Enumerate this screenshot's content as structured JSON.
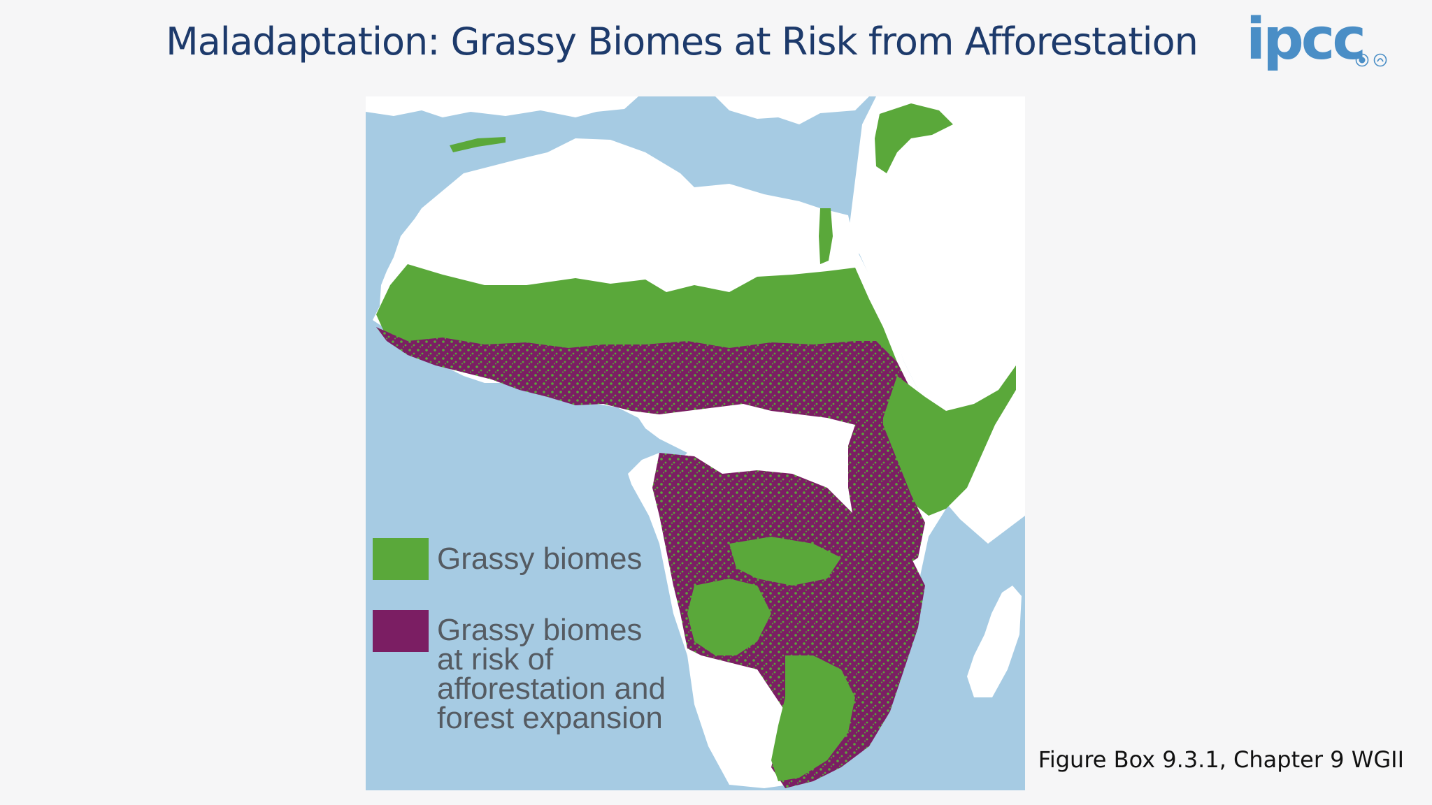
{
  "slide": {
    "title": "Maladaptation: Grassy Biomes at Risk from Afforestation",
    "caption": "Figure Box 9.3.1, Chapter 9 WGII"
  },
  "logo": {
    "text": "ipcc",
    "emblems": [
      "wmo-emblem",
      "unep-emblem"
    ],
    "color": "#4a8ec6"
  },
  "map": {
    "region": "Africa",
    "colors": {
      "ocean": "#a6cbe3",
      "land": "#ffffff",
      "grassy": "#5aa83a",
      "at_risk": "#7b1e63"
    },
    "legend": [
      {
        "color": "#5aa83a",
        "label_lines": [
          "Grassy biomes"
        ]
      },
      {
        "color": "#7b1e63",
        "label_lines": [
          "Grassy biomes",
          "at risk of",
          "afforestation and",
          "forest expansion"
        ]
      }
    ]
  }
}
